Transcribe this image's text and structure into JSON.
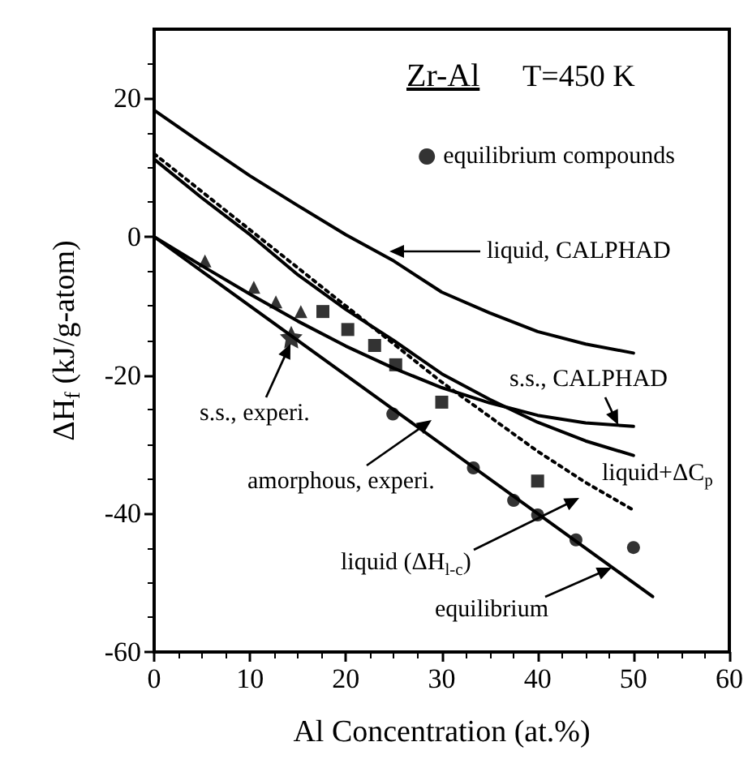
{
  "chart_data": {
    "type": "line",
    "title": "Zr-Al",
    "xlabel": "Al Concentration (at.%)",
    "ylabel": "ΔH$_{f}$ (kJ/g-atom)",
    "xlim": [
      0,
      60
    ],
    "xticks": [
      0,
      10,
      20,
      30,
      40,
      50,
      60
    ],
    "ylim": [
      -60,
      30
    ],
    "yticks": [
      -60,
      -40,
      -20,
      0,
      20
    ],
    "legend": "top right",
    "series": [
      {
        "color": "#000000",
        "marker": "none",
        "line_style": "solid",
        "x": [
          0,
          5,
          10,
          15,
          20,
          25,
          30,
          35,
          40,
          45,
          50
        ],
        "values": [
          18.3,
          13.5,
          8.8,
          4.5,
          0.3,
          -3.5,
          -8,
          -11,
          -13.7,
          -15.5,
          -16.8
        ]
      },
      {
        "color": "#000000",
        "marker": "none",
        "line_style": "solid",
        "x": [
          0,
          5,
          10,
          15,
          20,
          25,
          30,
          35,
          40,
          45,
          50
        ],
        "values": [
          11.2,
          5.6,
          0.3,
          -5.5,
          -10.5,
          -15,
          -19.8,
          -23.5,
          -26.8,
          -29.5,
          -31.6
        ]
      },
      {
        "color": "#000000",
        "marker": "none",
        "line_style": "dotted",
        "x": [
          0,
          5,
          10,
          15,
          20,
          25,
          30,
          35,
          40,
          45,
          50
        ],
        "values": [
          12,
          6.5,
          1,
          -4.5,
          -10,
          -15.5,
          -21,
          -26,
          -31,
          -35.5,
          -39.5
        ]
      },
      {
        "color": "#000000",
        "marker": "none",
        "line_style": "solid",
        "x": [
          0,
          5,
          10,
          15,
          20,
          25,
          30,
          35,
          40,
          45,
          50
        ],
        "values": [
          0,
          -4.2,
          -8.3,
          -12.2,
          -15.8,
          -19,
          -21.8,
          -24,
          -25.8,
          -26.9,
          -27.4
        ]
      },
      {
        "color": "#000000",
        "marker": "none",
        "line_style": "solid",
        "x": [
          0,
          52
        ],
        "values": [
          0,
          -52
        ]
      },
      {
        "type": "scatter",
        "name": "equilibrium compounds",
        "color": "#000000",
        "marker": "circle",
        "x": [
          24.9,
          33.3,
          37.5,
          40,
          44,
          50
        ],
        "values": [
          -25.6,
          -33.4,
          -38.1,
          -40.2,
          -43.8,
          -44.9
        ]
      },
      {
        "type": "scatter",
        "color": "#000000",
        "marker": "triangle",
        "x": [
          5.3,
          10.4,
          12.7,
          15.3
        ],
        "values": [
          -3.5,
          -7.3,
          -9.4,
          -10.8
        ]
      },
      {
        "type": "scatter",
        "color": "#000000",
        "marker": "square",
        "x": [
          17.6,
          20.2,
          23,
          25.2,
          30,
          40
        ],
        "values": [
          -10.8,
          -13.4,
          -15.7,
          -18.5,
          -23.9,
          -35.3
        ]
      },
      {
        "type": "scatter",
        "color": "#000000",
        "marker": "star",
        "x": [
          14.3
        ],
        "values": [
          -14.5
        ]
      }
    ],
    "annotations": [
      "T=450 K",
      "liquid, CALPHAD",
      "s.s., CALPHAD",
      "liquid+ΔC$_{p}$",
      "liquid (ΔH$_{l-c}$)",
      "equilibrium",
      "s.s., experi.",
      "amorphous, experi."
    ]
  }
}
